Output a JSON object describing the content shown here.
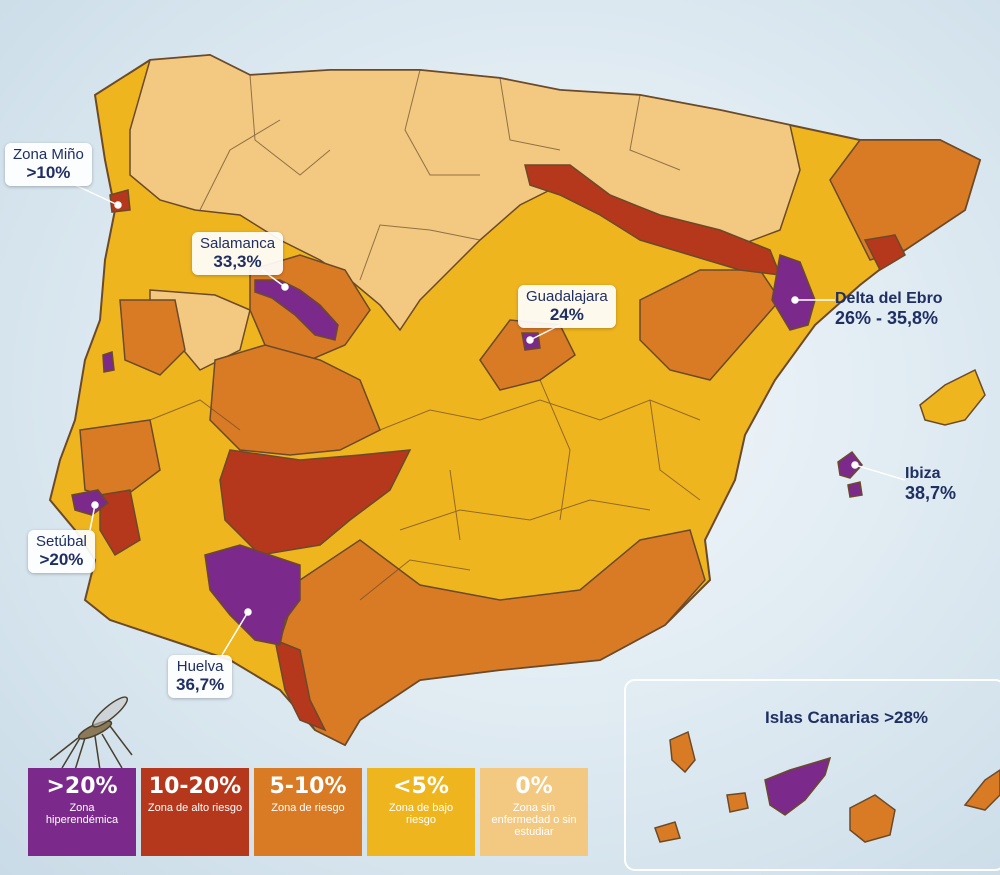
{
  "colors": {
    "hyper": "#7b2a8c",
    "alto": "#b6381c",
    "riesgo": "#d97b25",
    "bajo": "#efb51f",
    "cero": "#f3c881",
    "border": "#6b4a2a",
    "sea": "#dde9f1"
  },
  "zones": [
    {
      "id": "zona-mino",
      "name": "Zona Miño",
      "value": ">10%"
    },
    {
      "id": "salamanca",
      "name": "Salamanca",
      "value": "33,3%"
    },
    {
      "id": "guadalajara",
      "name": "Guadalajara",
      "value": "24%"
    },
    {
      "id": "delta-ebro",
      "name": "Delta del Ebro",
      "value": "26% - 35,8%"
    },
    {
      "id": "ibiza",
      "name": "Ibiza",
      "value": "38,7%"
    },
    {
      "id": "setubal",
      "name": "Setúbal",
      "value": ">20%"
    },
    {
      "id": "huelva",
      "name": "Huelva",
      "value": "36,7%"
    }
  ],
  "canarias": {
    "label": "Islas Canarias >28%"
  },
  "legend": [
    {
      "range": ">20%",
      "desc": "Zona hiperendémica",
      "color": "#7b2a8c"
    },
    {
      "range": "10-20%",
      "desc": "Zona de alto riesgo",
      "color": "#b6381c"
    },
    {
      "range": "5-10%",
      "desc": "Zona de riesgo",
      "color": "#d97b25"
    },
    {
      "range": "<5%",
      "desc": "Zona de bajo riesgo",
      "color": "#efb51f"
    },
    {
      "range": "0%",
      "desc": "Zona sin enfermedad o sin estudiar",
      "color": "#f3c881"
    }
  ]
}
